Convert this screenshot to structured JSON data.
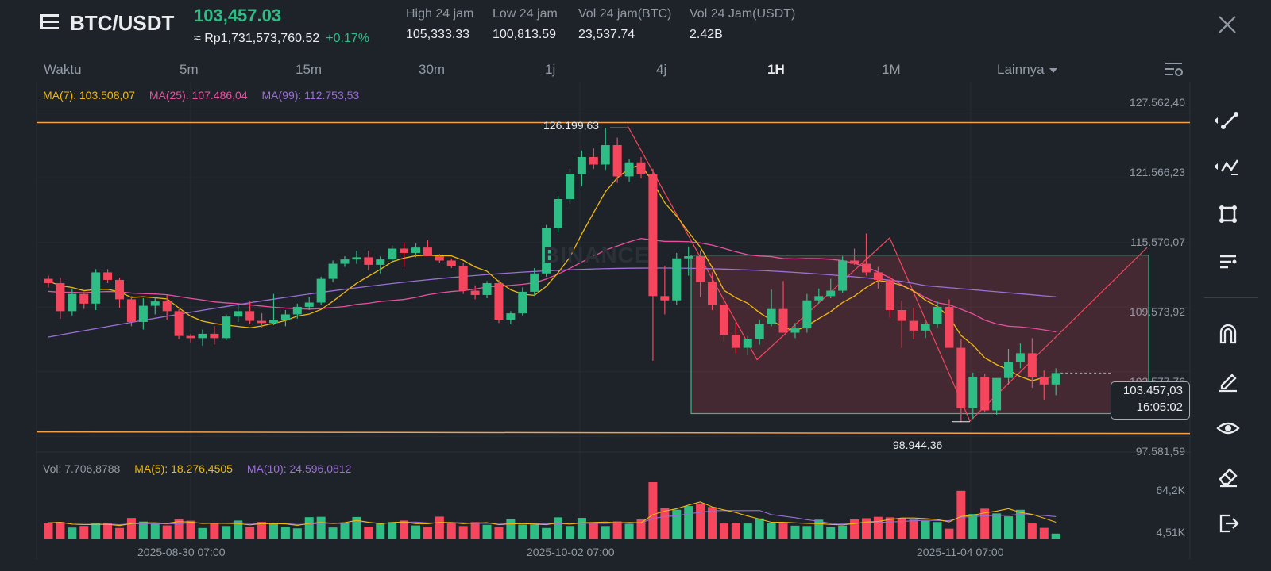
{
  "header": {
    "pair": "BTC/USDT",
    "last_price": "103,457.03",
    "approx_idr": "≈ Rp1,731,573,760.52",
    "change_pct": "+0.17%",
    "stats": [
      {
        "label": "High 24 jam",
        "value": "105,333.33"
      },
      {
        "label": "Low 24 jam",
        "value": "100,813.59"
      },
      {
        "label": "Vol 24 jam(BTC)",
        "value": "23,537.74"
      },
      {
        "label": "Vol 24 Jam(USDT)",
        "value": "2.42B"
      }
    ]
  },
  "timeframes": [
    {
      "label": "Waktu",
      "active": false
    },
    {
      "label": "5m",
      "active": false
    },
    {
      "label": "15m",
      "active": false
    },
    {
      "label": "30m",
      "active": false
    },
    {
      "label": "1j",
      "active": false
    },
    {
      "label": "4j",
      "active": false
    },
    {
      "label": "1H",
      "active": true
    },
    {
      "label": "1M",
      "active": false
    },
    {
      "label": "Lainnya",
      "active": false
    }
  ],
  "ma_legend": {
    "ma7": "MA(7): 103.508,07",
    "ma25": "MA(25): 107.486,04",
    "ma99": "MA(99): 112.753,53"
  },
  "vol_legend": {
    "vol": "Vol: 7.706,8788",
    "ma5": "MA(5): 18.276,4505",
    "ma10": "MA(10): 24.596,0812"
  },
  "price_axis": [
    "127.562,40",
    "121.566,23",
    "115.570,07",
    "109.573,92",
    "103.577,76",
    "97.581,59"
  ],
  "volume_axis": [
    "64,2K",
    "4,51K"
  ],
  "date_axis": [
    "2025-08-30 07:00",
    "2025-10-02 07:00",
    "2025-11-04 07:00"
  ],
  "high_marker": "126.199,63",
  "low_marker": "98.944,36",
  "current_price_box": {
    "price": "103.457,03",
    "countdown": "16:05:02"
  },
  "watermark": "BINANCE",
  "colors": {
    "up": "#2ebd85",
    "down": "#f6465d",
    "ma7": "#f0b90b",
    "ma25": "#e84fa0",
    "ma99": "#9b6fd6",
    "hline": "#f5a04a",
    "background": "#1e2329"
  },
  "tools": [
    "trend-line-icon",
    "fib-icon",
    "shape-icon",
    "text-lines-icon",
    "magnet-icon",
    "pencil-icon",
    "eye-icon",
    "eraser-icon",
    "exit-icon"
  ],
  "chart_data": {
    "type": "candlestick",
    "interval": "1D",
    "y_range": [
      96500,
      128500
    ],
    "candles_approx": [
      [
        112200,
        112500,
        111400,
        111800
      ],
      [
        111800,
        112300,
        108500,
        109200
      ],
      [
        109200,
        111300,
        108800,
        110800
      ],
      [
        110800,
        111000,
        109400,
        109900
      ],
      [
        109900,
        113100,
        109300,
        112800
      ],
      [
        112800,
        113100,
        111800,
        112100
      ],
      [
        112100,
        112300,
        109500,
        110300
      ],
      [
        110300,
        110600,
        107800,
        108200
      ],
      [
        108200,
        110400,
        107500,
        109700
      ],
      [
        109700,
        110500,
        108900,
        110100
      ],
      [
        110100,
        110700,
        108400,
        109200
      ],
      [
        109200,
        109400,
        106600,
        106900
      ],
      [
        106900,
        107100,
        106300,
        106700
      ],
      [
        106700,
        107500,
        106000,
        107100
      ],
      [
        107100,
        107800,
        106100,
        106700
      ],
      [
        106700,
        108900,
        106500,
        108700
      ],
      [
        108700,
        109800,
        108200,
        109200
      ],
      [
        109200,
        110100,
        108000,
        108300
      ],
      [
        108300,
        109000,
        107700,
        108100
      ],
      [
        108100,
        110800,
        107900,
        108400
      ],
      [
        108400,
        109300,
        107800,
        108900
      ],
      [
        108900,
        109900,
        108500,
        109600
      ],
      [
        109600,
        110500,
        109300,
        110000
      ],
      [
        110000,
        112400,
        109800,
        112200
      ],
      [
        112200,
        113900,
        111900,
        113600
      ],
      [
        113600,
        114300,
        113300,
        114000
      ],
      [
        114000,
        114800,
        113600,
        114200
      ],
      [
        114200,
        114800,
        113000,
        113500
      ],
      [
        113500,
        114300,
        112700,
        114000
      ],
      [
        114000,
        115300,
        113700,
        115000
      ],
      [
        115000,
        115600,
        113300,
        114600
      ],
      [
        114600,
        115500,
        114200,
        115100
      ],
      [
        115100,
        115800,
        114700,
        114300
      ],
      [
        114300,
        114500,
        113700,
        113900
      ],
      [
        113900,
        114100,
        113200,
        113400
      ],
      [
        113400,
        113700,
        110800,
        111100
      ],
      [
        111100,
        111600,
        110300,
        110700
      ],
      [
        110700,
        112000,
        110400,
        111800
      ],
      [
        111800,
        112100,
        108100,
        108400
      ],
      [
        108400,
        109200,
        108000,
        109000
      ],
      [
        109000,
        111400,
        108800,
        111000
      ],
      [
        111000,
        113200,
        110600,
        112700
      ],
      [
        112700,
        117200,
        112400,
        116900
      ],
      [
        116900,
        119900,
        116500,
        119600
      ],
      [
        119600,
        122400,
        119200,
        121900
      ],
      [
        121900,
        124100,
        120800,
        123500
      ],
      [
        123500,
        124300,
        122400,
        122800
      ],
      [
        122800,
        126200,
        122300,
        124600
      ],
      [
        124600,
        125300,
        121100,
        121700
      ],
      [
        121700,
        123300,
        121200,
        123000
      ],
      [
        123000,
        123500,
        121500,
        121900
      ],
      [
        121900,
        122400,
        104600,
        110600
      ],
      [
        110600,
        113400,
        108900,
        110200
      ],
      [
        110200,
        114600,
        109800,
        114100
      ],
      [
        114100,
        115200,
        112500,
        114300
      ],
      [
        114300,
        114800,
        110500,
        111900
      ],
      [
        111900,
        112800,
        109300,
        109800
      ],
      [
        109800,
        110400,
        106400,
        107000
      ],
      [
        107000,
        108200,
        105300,
        105800
      ],
      [
        105800,
        106900,
        105100,
        106600
      ],
      [
        106600,
        108400,
        106100,
        108000
      ],
      [
        108000,
        111200,
        107800,
        109400
      ],
      [
        109400,
        112000,
        108300,
        107200
      ],
      [
        107200,
        108100,
        106700,
        107600
      ],
      [
        107600,
        110800,
        107200,
        110200
      ],
      [
        110200,
        111300,
        109900,
        110600
      ],
      [
        110600,
        112200,
        110400,
        111100
      ],
      [
        111100,
        114300,
        110900,
        113900
      ],
      [
        113900,
        115000,
        113500,
        113600
      ],
      [
        113600,
        116400,
        112500,
        112800
      ],
      [
        112800,
        113300,
        111300,
        112100
      ],
      [
        112100,
        112500,
        108600,
        109300
      ],
      [
        109300,
        110200,
        105800,
        108300
      ],
      [
        108300,
        109500,
        106600,
        107400
      ],
      [
        107400,
        108200,
        106700,
        108000
      ],
      [
        108000,
        110100,
        107700,
        109600
      ],
      [
        109600,
        110300,
        106800,
        105800
      ],
      [
        105800,
        106600,
        98900,
        100200
      ],
      [
        100200,
        103500,
        99200,
        103100
      ],
      [
        103100,
        103400,
        99800,
        100000
      ],
      [
        100000,
        102600,
        99600,
        103000
      ],
      [
        103000,
        105700,
        102400,
        104500
      ],
      [
        104500,
        106200,
        103900,
        105300
      ],
      [
        105300,
        106700,
        102100,
        103100
      ],
      [
        103100,
        103700,
        101000,
        102400
      ],
      [
        102400,
        103900,
        101400,
        103460
      ]
    ],
    "horizontal_lines": [
      126700,
      97950
    ],
    "rectangle": {
      "top": 114400,
      "bottom": 99700
    },
    "ma_series": [
      "MA(7)",
      "MA(25)",
      "MA(99)"
    ]
  }
}
